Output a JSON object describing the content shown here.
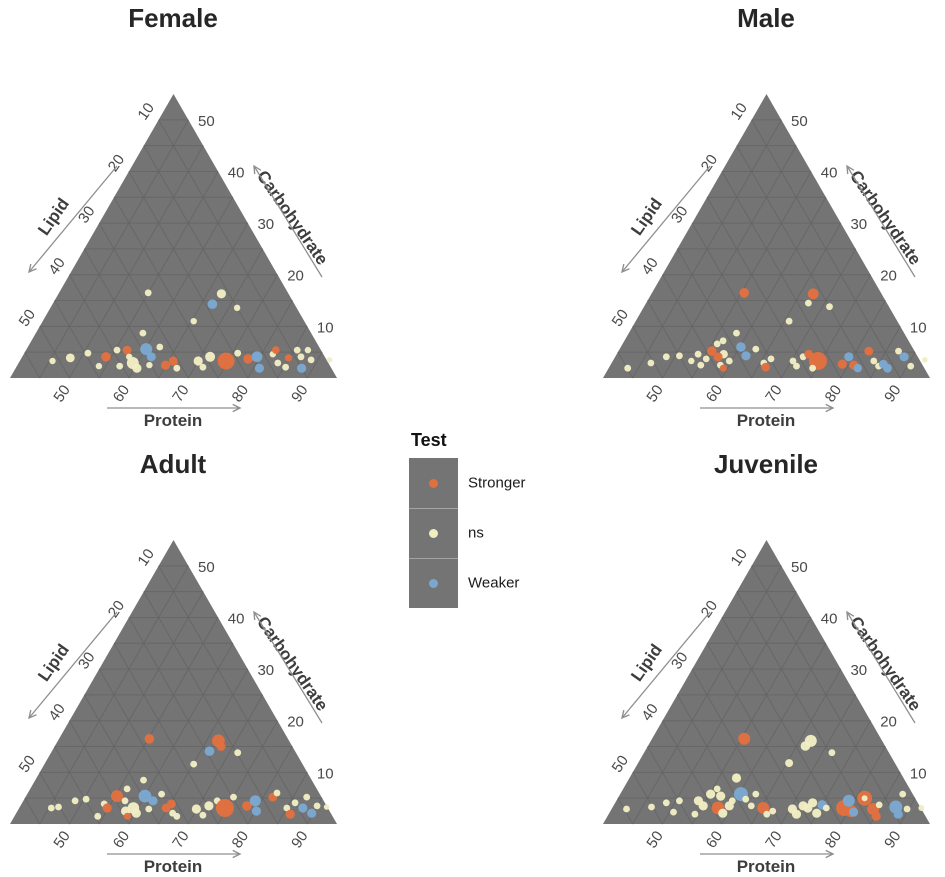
{
  "page": {
    "background": "#ffffff"
  },
  "legend": {
    "title": "Test",
    "items": [
      {
        "key": "S",
        "label": "Stronger",
        "color": "#E1703F"
      },
      {
        "key": "N",
        "label": "ns",
        "color": "#F1EDC3"
      },
      {
        "key": "W",
        "label": "Weaker",
        "color": "#7BA7CF"
      }
    ],
    "box_color": "#747474"
  },
  "chart_data": {
    "type": "scatter",
    "subtype": "ternary",
    "title": "",
    "triangle_fill": "#747474",
    "grid_color": "#656565",
    "grid_step": 5,
    "axes": {
      "bottom": {
        "label": "Protein",
        "ticks": [
          50,
          60,
          70,
          80,
          90
        ],
        "range": [
          40,
          95
        ]
      },
      "right": {
        "label": "Carbohydrate",
        "ticks": [
          10,
          20,
          30,
          40,
          50
        ],
        "range": [
          0,
          55
        ]
      },
      "left": {
        "label": "Lipid",
        "ticks": [
          10,
          20,
          30,
          40,
          50
        ],
        "range": [
          5,
          60
        ]
      }
    },
    "point_format": [
      "protein_pct",
      "carbohydrate_pct",
      "test_key",
      "radius_px"
    ],
    "note": "lipid_pct = 100 - protein_pct - carbohydrate_pct",
    "panels": [
      {
        "title": "Female",
        "points": [
          [
            55,
            16.5,
            "N",
            3.4
          ],
          [
            67.4,
            16.3,
            "N",
            4.6
          ],
          [
            66.9,
            14.3,
            "W",
            4.8
          ],
          [
            71.4,
            13.6,
            "N",
            3.2
          ],
          [
            65.4,
            11,
            "N",
            3.2
          ],
          [
            58,
            8.7,
            "N",
            3.4
          ],
          [
            45.5,
            3.3,
            "N",
            3.2
          ],
          [
            48.2,
            3.9,
            "N",
            4.4
          ],
          [
            50.7,
            4.8,
            "N",
            3.4
          ],
          [
            53.8,
            2.3,
            "N",
            3.2
          ],
          [
            54.1,
            4.1,
            "S",
            4.8
          ],
          [
            55.3,
            5.4,
            "N",
            3.4
          ],
          [
            57.3,
            2.3,
            "N",
            3.4
          ],
          [
            57,
            5.4,
            "S",
            4.4
          ],
          [
            58,
            4.1,
            "N",
            3.2
          ],
          [
            59.2,
            2.9,
            "N",
            6
          ],
          [
            60.4,
            1.9,
            "N",
            4.6
          ],
          [
            60.1,
            5.6,
            "W",
            6
          ],
          [
            61.7,
            4.1,
            "W",
            4.6
          ],
          [
            62.2,
            6,
            "N",
            3.4
          ],
          [
            64.9,
            2.5,
            "S",
            4.6
          ],
          [
            65.8,
            3.3,
            "S",
            4.6
          ],
          [
            62.2,
            2.5,
            "N",
            3.2
          ],
          [
            67.1,
            1.9,
            "N",
            3.4
          ],
          [
            70,
            3.3,
            "N",
            4.6
          ],
          [
            71.4,
            2.1,
            "N",
            3.4
          ],
          [
            71.6,
            4.1,
            "N",
            5
          ],
          [
            74.7,
            3.3,
            "S",
            8.5
          ],
          [
            75.9,
            4.8,
            "N",
            3.4
          ],
          [
            78.2,
            3.7,
            "S",
            4.8
          ],
          [
            79.5,
            4.1,
            "W",
            5.4
          ],
          [
            81,
            1.9,
            "W",
            4.6
          ],
          [
            81.9,
            4.6,
            "N",
            3.2
          ],
          [
            82,
            5.4,
            "S",
            3.8
          ],
          [
            83.6,
            2.9,
            "N",
            3.4
          ],
          [
            85.3,
            2.1,
            "N",
            3.4
          ],
          [
            84.9,
            3.9,
            "S",
            3.6
          ],
          [
            85.6,
            5.4,
            "N",
            3.4
          ],
          [
            86.9,
            4.1,
            "N",
            3.4
          ],
          [
            88.1,
            1.9,
            "W",
            4.6
          ],
          [
            87.4,
            5.4,
            "N",
            3.2
          ],
          [
            88.9,
            3.5,
            "N",
            3.4
          ],
          [
            92,
            3.5,
            "N",
            2.8
          ]
        ]
      },
      {
        "title": "Male",
        "points": [
          [
            55.5,
            16.5,
            "S",
            4.8
          ],
          [
            67.2,
            16.3,
            "S",
            5.4
          ],
          [
            67.3,
            14.5,
            "N",
            3.4
          ],
          [
            71.2,
            13.8,
            "N",
            3.4
          ],
          [
            65.8,
            11,
            "N",
            3.4
          ],
          [
            58.1,
            8.7,
            "N",
            3.4
          ],
          [
            43.2,
            1.9,
            "N",
            3.4
          ],
          [
            46.6,
            2.9,
            "N",
            3.4
          ],
          [
            48.6,
            4.1,
            "N",
            3.4
          ],
          [
            50.7,
            4.3,
            "N",
            3.4
          ],
          [
            53.2,
            3.3,
            "N",
            3.2
          ],
          [
            53.7,
            4.6,
            "N",
            3.4
          ],
          [
            55.2,
            2.5,
            "N",
            3.4
          ],
          [
            55.5,
            3.7,
            "N",
            3.4
          ],
          [
            55.7,
            5.2,
            "S",
            4.8
          ],
          [
            55.9,
            6.6,
            "N",
            3.4
          ],
          [
            56.6,
            7.2,
            "N",
            3.4
          ],
          [
            58,
            4.6,
            "N",
            4.2
          ],
          [
            57.3,
            4.1,
            "S",
            4.6
          ],
          [
            58.5,
            2.5,
            "N",
            3.4
          ],
          [
            59.3,
            1.9,
            "S",
            3.6
          ],
          [
            59.6,
            3.3,
            "N",
            3.4
          ],
          [
            60.2,
            6,
            "W",
            4.8
          ],
          [
            61.9,
            4.3,
            "W",
            4.6
          ],
          [
            62.9,
            5.6,
            "N",
            3.4
          ],
          [
            65.6,
            2.9,
            "N",
            3.4
          ],
          [
            66.3,
            2.1,
            "S",
            4.4
          ],
          [
            66.4,
            3.7,
            "N",
            3.4
          ],
          [
            70.3,
            3.3,
            "N",
            3.4
          ],
          [
            71.4,
            2.3,
            "N",
            3.4
          ],
          [
            71.6,
            4.1,
            "N",
            3.4
          ],
          [
            72.3,
            4.6,
            "S",
            4.4
          ],
          [
            74.5,
            3.3,
            "S",
            9
          ],
          [
            74.3,
            1.9,
            "N",
            3.4
          ],
          [
            78.9,
            2.7,
            "S",
            4.6
          ],
          [
            79.3,
            4.1,
            "W",
            4.6
          ],
          [
            80.9,
            2.5,
            "S",
            4.6
          ],
          [
            81.9,
            1.9,
            "W",
            4.2
          ],
          [
            82.1,
            5.2,
            "S",
            4.4
          ],
          [
            83.9,
            3.3,
            "N",
            3.4
          ],
          [
            85.2,
            2.3,
            "N",
            3.4
          ],
          [
            85.8,
            2.7,
            "W",
            4.4
          ],
          [
            87.1,
            5.2,
            "N",
            3.4
          ],
          [
            88.6,
            4.1,
            "W",
            4.6
          ],
          [
            86.9,
            1.9,
            "W",
            4.4
          ],
          [
            90.6,
            2.3,
            "N",
            3.4
          ],
          [
            92.4,
            3.5,
            "N",
            2.8
          ]
        ]
      },
      {
        "title": "Adult",
        "points": [
          [
            55.2,
            16.5,
            "S",
            4.8
          ],
          [
            67,
            16.1,
            "S",
            6.4
          ],
          [
            68,
            15,
            "S",
            4.4
          ],
          [
            66.5,
            14.1,
            "W",
            4.8
          ],
          [
            71.4,
            13.8,
            "N",
            3.4
          ],
          [
            65.1,
            11.6,
            "N",
            3.4
          ],
          [
            58.2,
            8.5,
            "N",
            3.4
          ],
          [
            45.4,
            3.1,
            "N",
            3.4
          ],
          [
            46.5,
            3.3,
            "N",
            3.4
          ],
          [
            48.7,
            4.5,
            "N",
            3.4
          ],
          [
            50.4,
            4.8,
            "N",
            3.4
          ],
          [
            54,
            1.5,
            "N",
            3.4
          ],
          [
            53.9,
            3.9,
            "N",
            3.4
          ],
          [
            54.8,
            3.1,
            "S",
            4.6
          ],
          [
            55.3,
            5.4,
            "S",
            6
          ],
          [
            57.1,
            4.5,
            "N",
            3.4
          ],
          [
            56.3,
            6.8,
            "N",
            3.4
          ],
          [
            58.2,
            2.5,
            "N",
            4.6
          ],
          [
            59,
            1.5,
            "S",
            3.6
          ],
          [
            59.2,
            3.1,
            "N",
            5.8
          ],
          [
            60.2,
            2.1,
            "N",
            4.6
          ],
          [
            60,
            5.4,
            "W",
            6.4
          ],
          [
            61.8,
            4.5,
            "W",
            4.6
          ],
          [
            61.9,
            2.9,
            "N",
            3.4
          ],
          [
            62.6,
            5.8,
            "N",
            3.4
          ],
          [
            66.3,
            2.1,
            "N",
            3.4
          ],
          [
            64.7,
            3.1,
            "S",
            4.4
          ],
          [
            65.2,
            3.9,
            "S",
            4.4
          ],
          [
            67.3,
            1.5,
            "N",
            3.4
          ],
          [
            69.9,
            2.9,
            "N",
            4.6
          ],
          [
            71.6,
            1.7,
            "N",
            3.4
          ],
          [
            71.7,
            3.5,
            "N",
            4.6
          ],
          [
            72.6,
            4.5,
            "N",
            3.4
          ],
          [
            74.6,
            3.1,
            "S",
            9
          ],
          [
            75,
            5.2,
            "N",
            3.4
          ],
          [
            78.1,
            3.5,
            "S",
            4.8
          ],
          [
            79,
            4.5,
            "W",
            5.6
          ],
          [
            80.2,
            2.5,
            "W",
            4.6
          ],
          [
            81.6,
            5.2,
            "S",
            4.4
          ],
          [
            81.9,
            6,
            "N",
            3.4
          ],
          [
            85,
            3.1,
            "N",
            3.4
          ],
          [
            86.2,
            1.9,
            "S",
            4.6
          ],
          [
            85.9,
            4.1,
            "N",
            3.4
          ],
          [
            87.7,
            3.1,
            "W",
            4.6
          ],
          [
            87.3,
            5.2,
            "N",
            3.4
          ],
          [
            89.7,
            2.1,
            "W",
            4.6
          ],
          [
            89.9,
            3.5,
            "N",
            3.4
          ],
          [
            91.6,
            3.3,
            "N",
            2.8
          ]
        ]
      },
      {
        "title": "Juvenile",
        "points": [
          [
            55.5,
            16.5,
            "S",
            6
          ],
          [
            66.5,
            15.1,
            "N",
            4.8
          ],
          [
            66.9,
            16.1,
            "N",
            6
          ],
          [
            65.4,
            11.8,
            "N",
            4
          ],
          [
            71.6,
            13.8,
            "N",
            3.4
          ],
          [
            58,
            8.9,
            "N",
            4.6
          ],
          [
            42.5,
            2.9,
            "N",
            3.4
          ],
          [
            46.5,
            3.3,
            "N",
            3.4
          ],
          [
            48.6,
            4.1,
            "N",
            3.4
          ],
          [
            50.6,
            4.5,
            "N",
            3.4
          ],
          [
            50.7,
            2.3,
            "N",
            3.4
          ],
          [
            53.8,
            4.5,
            "N",
            4.6
          ],
          [
            55.1,
            3.5,
            "N",
            4.6
          ],
          [
            54.5,
            1.9,
            "N",
            3.4
          ],
          [
            55.2,
            5.8,
            "N",
            4.6
          ],
          [
            55.8,
            6.8,
            "N",
            3.4
          ],
          [
            57.1,
            5.4,
            "N",
            4.6
          ],
          [
            57.8,
            3.1,
            "S",
            6.4
          ],
          [
            59.1,
            2.1,
            "N",
            4.6
          ],
          [
            59.5,
            3.5,
            "N",
            4.6
          ],
          [
            59.5,
            4.5,
            "N",
            3.4
          ],
          [
            60.3,
            5.8,
            "W",
            7
          ],
          [
            61.6,
            4.8,
            "N",
            3.4
          ],
          [
            63.2,
            3.5,
            "N",
            3.4
          ],
          [
            62.8,
            5.8,
            "N",
            3.4
          ],
          [
            65.4,
            3.1,
            "S",
            6
          ],
          [
            66.6,
            1.9,
            "N",
            3.4
          ],
          [
            67.3,
            2.5,
            "N",
            3.4
          ],
          [
            70.4,
            2.9,
            "N",
            4.6
          ],
          [
            71.6,
            1.9,
            "N",
            4.6
          ],
          [
            71.9,
            3.5,
            "N",
            4.6
          ],
          [
            72.9,
            3.1,
            "N",
            4.6
          ],
          [
            73.2,
            4.1,
            "N",
            4.6
          ],
          [
            74.9,
            2.1,
            "N",
            4.6
          ],
          [
            75,
            3.7,
            "W",
            4.8
          ],
          [
            76,
            3.1,
            "N",
            3.4
          ],
          [
            79,
            3.1,
            "S",
            8
          ],
          [
            80.5,
            2.5,
            "S",
            6
          ],
          [
            79.1,
            4.5,
            "W",
            6
          ],
          [
            81,
            2.3,
            "W",
            4.6
          ],
          [
            81.5,
            5,
            "S",
            7.5
          ],
          [
            81.5,
            5,
            "N",
            3
          ],
          [
            84,
            2.9,
            "S",
            6
          ],
          [
            84.6,
            3.7,
            "N",
            3.4
          ],
          [
            85.2,
            1.5,
            "S",
            4.6
          ],
          [
            87.5,
            5.8,
            "N",
            3.4
          ],
          [
            87.6,
            3.3,
            "W",
            6.5
          ],
          [
            88.7,
            1.9,
            "W",
            4.6
          ],
          [
            89.7,
            2.9,
            "N",
            3.4
          ],
          [
            92,
            3.1,
            "N",
            3
          ]
        ]
      }
    ]
  }
}
